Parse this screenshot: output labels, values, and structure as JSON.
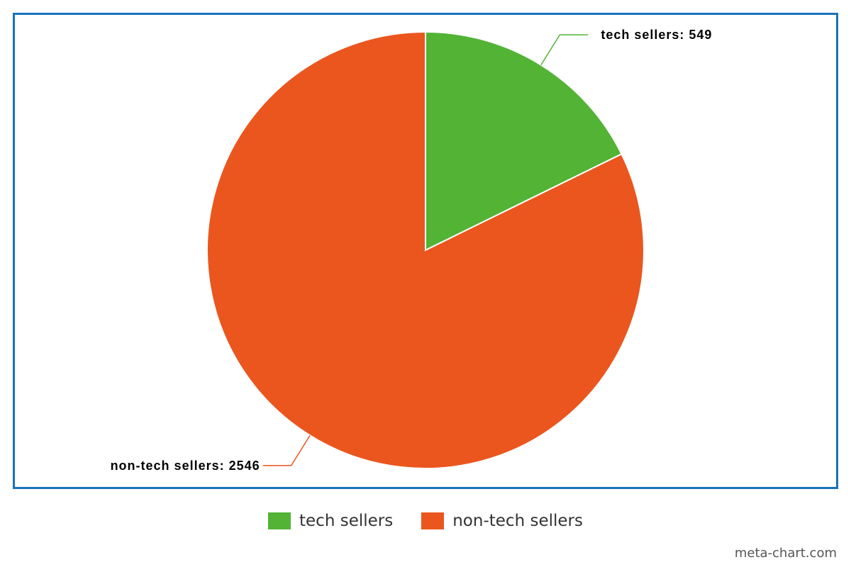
{
  "chart_data": {
    "type": "pie",
    "title": "",
    "categories": [
      "tech sellers",
      "non-tech sellers"
    ],
    "values": [
      549,
      2546
    ],
    "colors": [
      "#52b335",
      "#ea561e"
    ],
    "data_labels": [
      "tech sellers: 549",
      "non-tech sellers: 2546"
    ],
    "legend_placement": "bottom-center",
    "start_angle": "top",
    "direction": "clockwise"
  },
  "legend": {
    "items": [
      {
        "label": "tech sellers",
        "color": "#52b335"
      },
      {
        "label": "non-tech sellers",
        "color": "#ea561e"
      }
    ]
  },
  "credit": "meta-chart.com",
  "frame_color": "#1a72bb"
}
